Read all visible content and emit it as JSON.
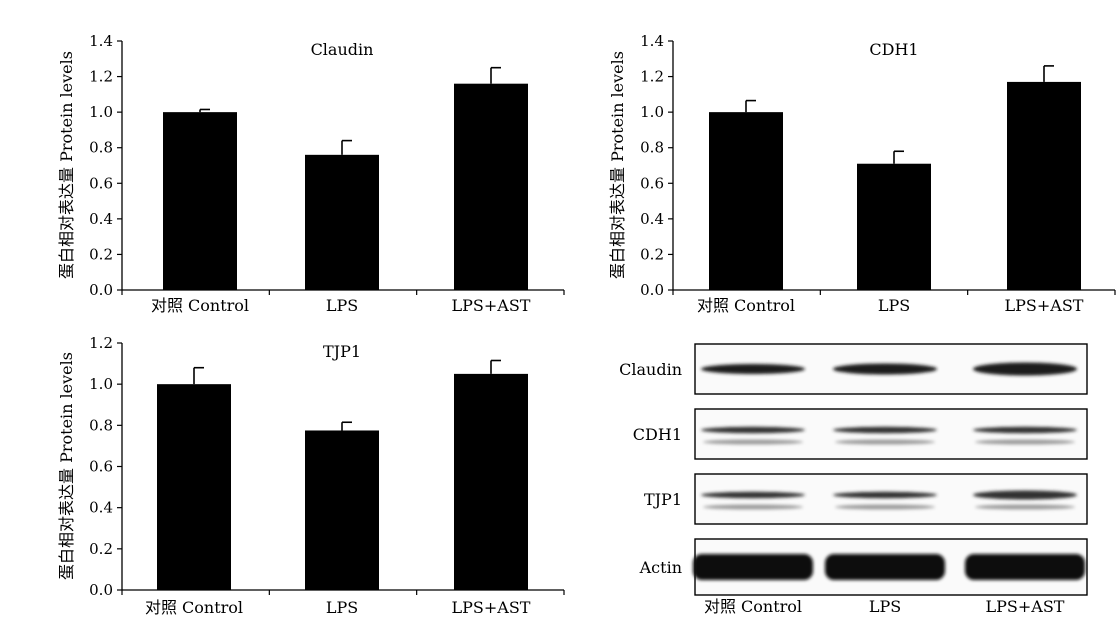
{
  "chart_data": [
    {
      "type": "bar",
      "title": "Claudin",
      "ylabel": "蛋白相对表达量 Protein levels",
      "categories": [
        "对照 Control",
        "LPS",
        "LPS+AST"
      ],
      "values": [
        1.0,
        0.76,
        1.16
      ],
      "errors": [
        0.015,
        0.08,
        0.09
      ],
      "ylim": [
        0,
        1.4
      ],
      "yticks": [
        "0.0",
        "0.2",
        "0.4",
        "0.6",
        "0.8",
        "1.0",
        "1.2",
        "1.4"
      ],
      "tick_values": [
        0,
        0.2,
        0.4,
        0.6,
        0.8,
        1.0,
        1.2,
        1.4
      ]
    },
    {
      "type": "bar",
      "title": "CDH1",
      "ylabel": "蛋白相对表达量 Protein levels",
      "categories": [
        "对照 Control",
        "LPS",
        "LPS+AST"
      ],
      "values": [
        1.0,
        0.71,
        1.17
      ],
      "errors": [
        0.065,
        0.07,
        0.09
      ],
      "ylim": [
        0,
        1.4
      ],
      "yticks": [
        "0.0",
        "0.2",
        "0.4",
        "0.6",
        "0.8",
        "1.0",
        "1.2",
        "1.4"
      ],
      "tick_values": [
        0,
        0.2,
        0.4,
        0.6,
        0.8,
        1.0,
        1.2,
        1.4
      ]
    },
    {
      "type": "bar",
      "title": "TJP1",
      "ylabel": "蛋白相对表达量 Protein levels",
      "categories": [
        "对照 Control",
        "LPS",
        "LPS+AST"
      ],
      "values": [
        1.0,
        0.775,
        1.05
      ],
      "errors": [
        0.08,
        0.04,
        0.065
      ],
      "ylim": [
        0,
        1.2
      ],
      "yticks": [
        "0.0",
        "0.2",
        "0.4",
        "0.6",
        "0.8",
        "1.0",
        "1.2"
      ],
      "tick_values": [
        0,
        0.2,
        0.4,
        0.6,
        0.8,
        1.0,
        1.2
      ]
    }
  ],
  "western_blot": {
    "bands": [
      "Claudin",
      "CDH1",
      "TJP1",
      "Actin"
    ],
    "categories": [
      "对照 Control",
      "LPS",
      "LPS+AST"
    ]
  }
}
